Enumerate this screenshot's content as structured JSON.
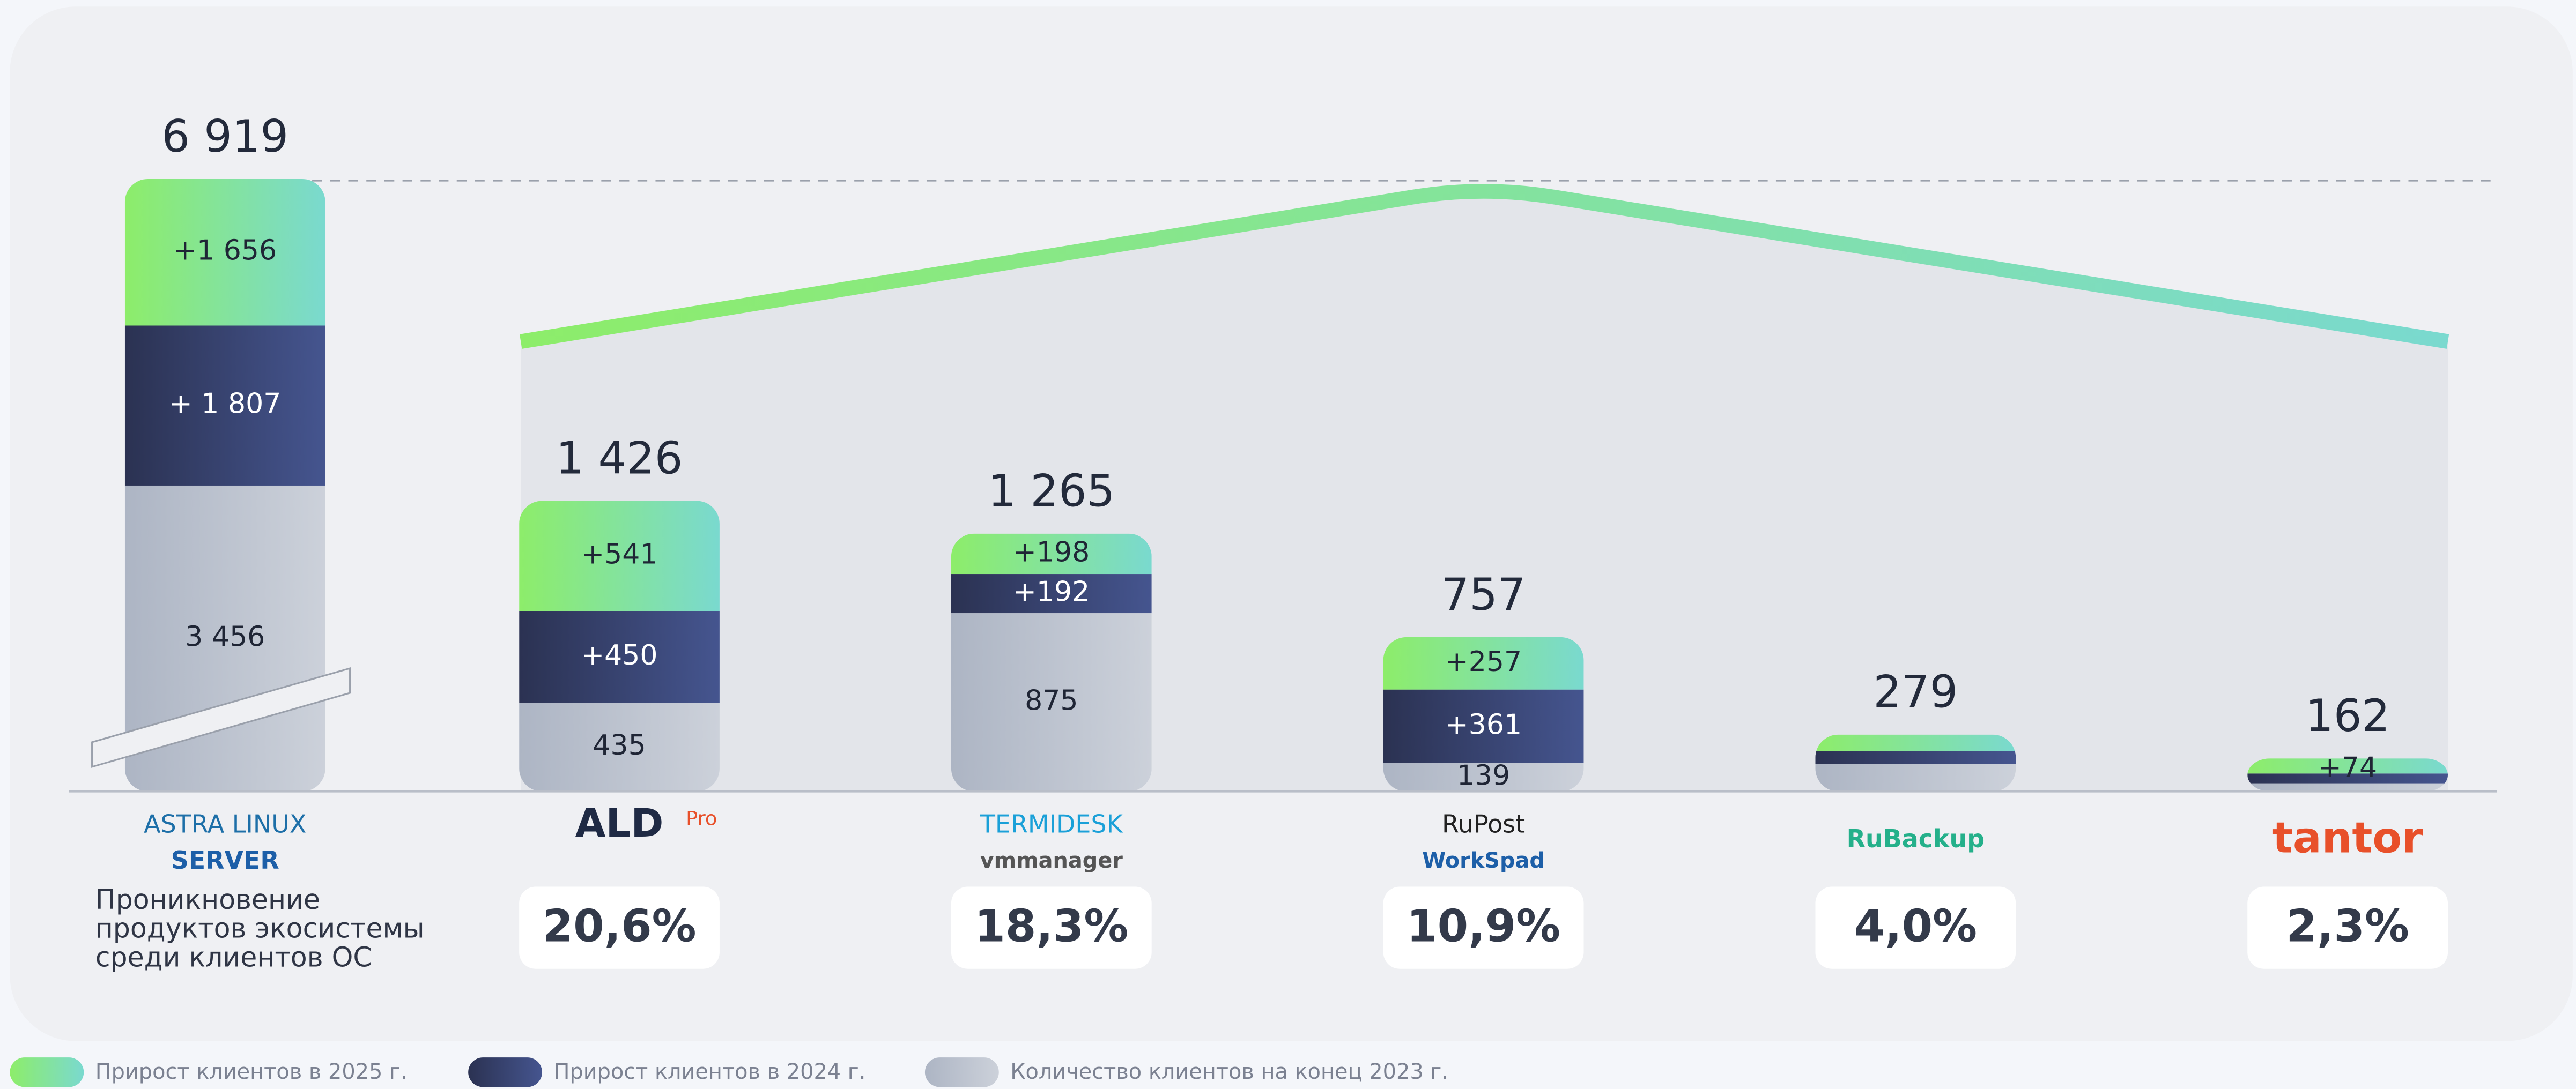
{
  "chart_data": {
    "type": "bar",
    "stacked": true,
    "categories": [
      "ASTRA LINUX",
      "ALD",
      "TERMIDESK",
      "RuPost",
      "RuBackup",
      "tantor"
    ],
    "category_sublabels": [
      "SERVER",
      "Pro",
      "vmmanager",
      "WorkSpad",
      null,
      null
    ],
    "series": [
      {
        "name": "Прирост клиентов в 2025 г.",
        "color": "#8ded6a",
        "gradient": [
          "#8ded6a",
          "#7ad9cf"
        ],
        "values": [
          1656,
          541,
          198,
          257,
          80,
          74
        ],
        "value_labels": [
          "+1 656",
          "+541",
          "+198",
          "+257",
          null,
          "+74"
        ]
      },
      {
        "name": "Прирост клиентов в 2024 г.",
        "color": "#2b3252",
        "gradient": [
          "#2b3252",
          "#45558f"
        ],
        "values": [
          1807,
          450,
          192,
          361,
          65,
          48
        ],
        "value_labels": [
          "+ 1 807",
          "+450",
          "+192",
          "+361",
          null,
          null
        ]
      },
      {
        "name": "Количество клиентов на конец 2023 г.",
        "color": "#b3bac8",
        "gradient": [
          "#adb5c4",
          "#ccd1da"
        ],
        "values": [
          3456,
          435,
          875,
          139,
          134,
          40
        ],
        "value_labels": [
          "3 456",
          "435",
          "875",
          "139",
          null,
          null
        ]
      }
    ],
    "totals": [
      6919,
      1426,
      1265,
      757,
      279,
      162
    ],
    "total_labels": [
      "6 919",
      "1 426",
      "1 265",
      "757",
      "279",
      "162"
    ],
    "penetration": {
      "label": "Проникновение продуктов экосистемы среди клиентов ОС",
      "values": [
        20.6,
        18.3,
        10.9,
        4.0,
        2.3
      ],
      "value_labels": [
        "20,6%",
        "18,3%",
        "10,9%",
        "4,0%",
        "2,3%"
      ]
    },
    "broken_axis": true
  }
}
